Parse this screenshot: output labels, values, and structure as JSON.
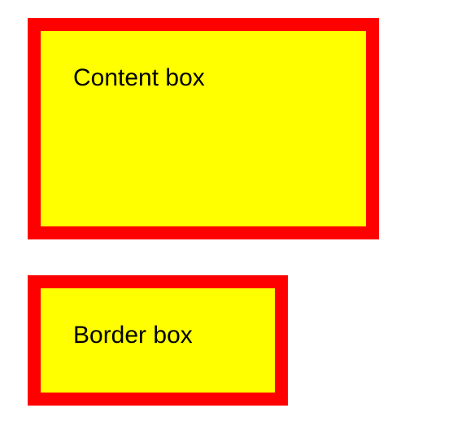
{
  "boxes": [
    {
      "label": "Content box",
      "box_sizing": "content-box",
      "background_color": "#ffff00",
      "border_color": "#ff0000"
    },
    {
      "label": "Border box",
      "box_sizing": "border-box",
      "background_color": "#ffff00",
      "border_color": "#ff0000"
    }
  ]
}
